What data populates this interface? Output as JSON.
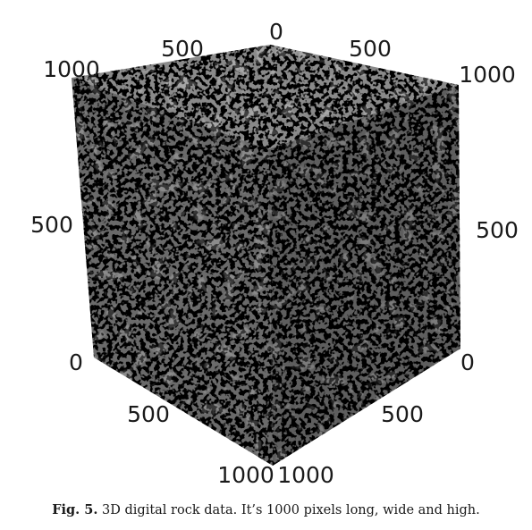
{
  "figure": {
    "caption_label": "Fig. 5.",
    "caption_text": "3D digital rock data. It’s 1000 pixels long, wide and high.",
    "tick_labels": {
      "top_center": "0",
      "top_left_mid": "500",
      "top_right_mid": "500",
      "top_left_corner": "1000",
      "top_right_corner": "1000",
      "left_mid": "500",
      "right_mid": "500",
      "left_bottom": "0",
      "right_bottom": "0",
      "bottom_left_mid": "500",
      "bottom_right_mid": "500",
      "bottom_left_corner": "1000",
      "bottom_right_corner": "1000"
    },
    "colors": {
      "face_top": "#8a8a8a",
      "face_left": "#6a6a6a",
      "face_right": "#5e5e5e",
      "pores": "#0c0c0c",
      "highlight": "#b8b8b8"
    }
  }
}
